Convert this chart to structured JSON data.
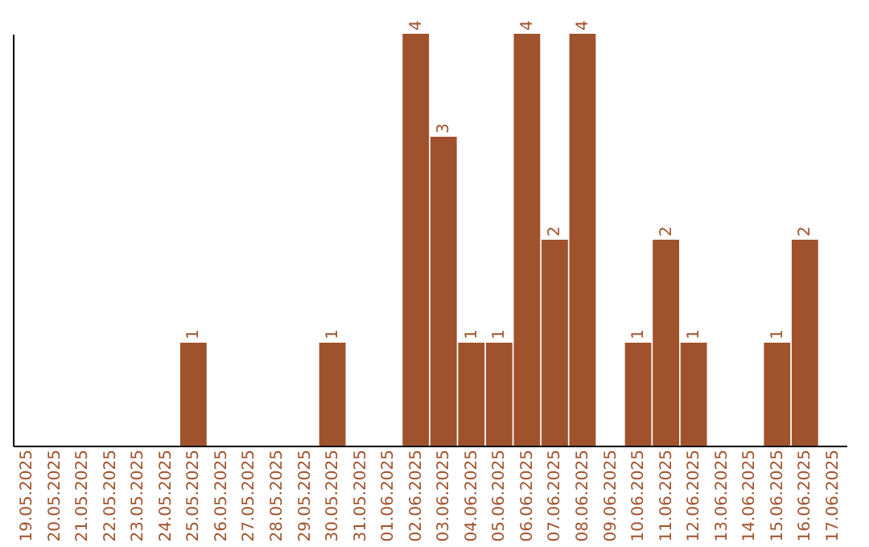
{
  "chart_data": {
    "type": "bar",
    "categories": [
      "19.05.2025",
      "20.05.2025",
      "21.05.2025",
      "22.05.2025",
      "23.05.2025",
      "24.05.2025",
      "25.05.2025",
      "26.05.2025",
      "27.05.2025",
      "28.05.2025",
      "29.05.2025",
      "30.05.2025",
      "31.05.2025",
      "01.06.2025",
      "02.06.2025",
      "03.06.2025",
      "04.06.2025",
      "05.06.2025",
      "06.06.2025",
      "07.06.2025",
      "08.06.2025",
      "09.06.2025",
      "10.06.2025",
      "11.06.2025",
      "12.06.2025",
      "13.06.2025",
      "14.06.2025",
      "15.06.2025",
      "16.06.2025",
      "17.06.2025"
    ],
    "values": [
      0,
      0,
      0,
      0,
      0,
      0,
      1,
      0,
      0,
      0,
      0,
      1,
      0,
      0,
      4,
      3,
      1,
      1,
      4,
      2,
      4,
      0,
      1,
      2,
      1,
      0,
      0,
      1,
      2,
      0
    ],
    "value_labels": [
      null,
      null,
      null,
      null,
      null,
      null,
      "1",
      null,
      null,
      null,
      null,
      "1",
      null,
      null,
      "4",
      "3",
      "1",
      "1",
      "4",
      "2",
      "4",
      null,
      "1",
      "2",
      "1",
      null,
      null,
      "1",
      "2",
      null
    ],
    "color": "#a0522d",
    "tick_labels": "x"
  }
}
